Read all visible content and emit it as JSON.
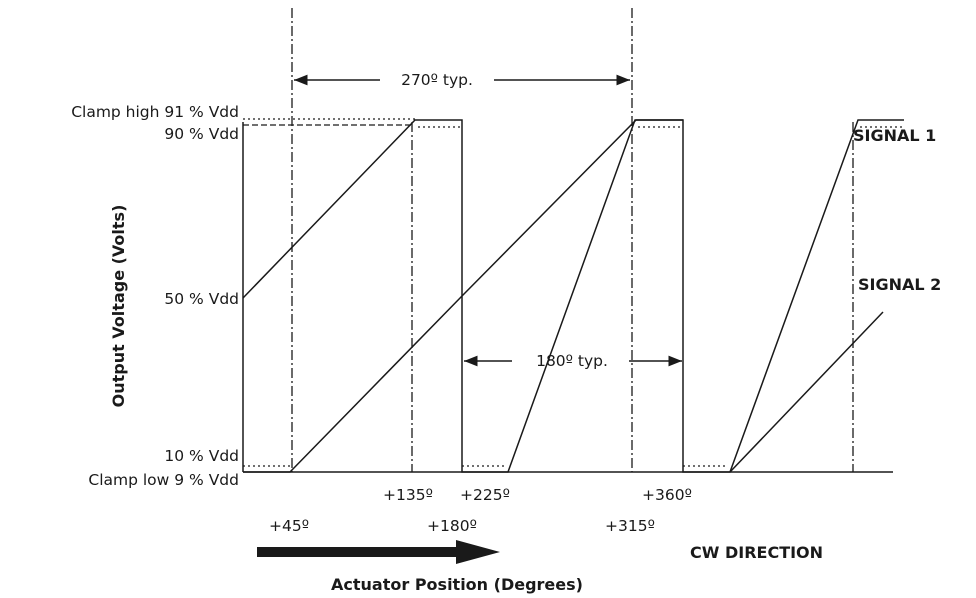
{
  "y_labels": {
    "clamp_high": "Clamp high  91 % Vdd",
    "v90": "90 % Vdd",
    "v50": "50 % Vdd",
    "v10": "10 % Vdd",
    "clamp_low": "Clamp low  9 % Vdd"
  },
  "y_axis_title": "Output Voltage (Volts)",
  "x_axis_title": "Actuator Position (Degrees)",
  "direction_label": "CW DIRECTION",
  "signals": {
    "signal1": "SIGNAL 1",
    "signal2": "SIGNAL 2"
  },
  "spans": {
    "s270": "270º typ.",
    "s180": "180º typ."
  },
  "x_ticks": {
    "p45": "+45º",
    "p135": "+135º",
    "p180": "+180º",
    "p225": "+225º",
    "p315": "+315º",
    "p360": "+360º"
  }
}
